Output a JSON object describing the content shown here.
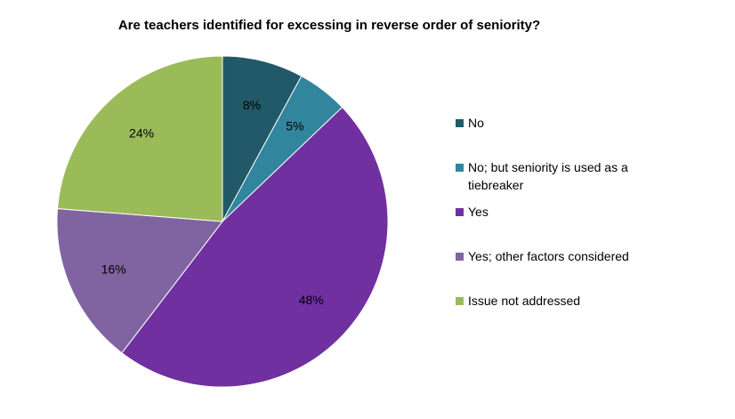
{
  "chart_data": {
    "type": "pie",
    "title": "Are teachers identified for excessing in reverse order of seniority?",
    "slices": [
      {
        "label": "No",
        "value": 8,
        "display": "8%",
        "color": "#215968"
      },
      {
        "label": "No; but seniority is used as a tiebreaker",
        "value": 5,
        "display": "5%",
        "color": "#31859C"
      },
      {
        "label": "Yes",
        "value": 48,
        "display": "48%",
        "color": "#7030A0"
      },
      {
        "label": "Yes; other factors considered",
        "value": 16,
        "display": "16%",
        "color": "#8064A2"
      },
      {
        "label": "Issue not addressed",
        "value": 24,
        "display": "24%",
        "color": "#9BBB59"
      }
    ],
    "legend_position": "right"
  }
}
